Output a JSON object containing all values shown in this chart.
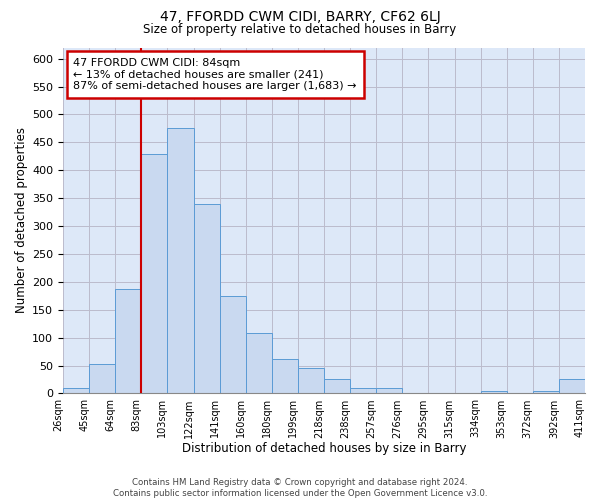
{
  "title": "47, FFORDD CWM CIDI, BARRY, CF62 6LJ",
  "subtitle": "Size of property relative to detached houses in Barry",
  "xlabel": "Distribution of detached houses by size in Barry",
  "ylabel": "Number of detached properties",
  "bar_values": [
    10,
    53,
    187,
    430,
    475,
    340,
    175,
    108,
    62,
    46,
    26,
    10,
    10,
    0,
    0,
    0,
    4,
    0,
    5,
    26
  ],
  "bar_labels": [
    "26sqm",
    "45sqm",
    "64sqm",
    "83sqm",
    "103sqm",
    "122sqm",
    "141sqm",
    "160sqm",
    "180sqm",
    "199sqm",
    "218sqm",
    "238sqm",
    "257sqm",
    "276sqm",
    "295sqm",
    "315sqm",
    "334sqm",
    "353sqm",
    "372sqm",
    "392sqm",
    "411sqm"
  ],
  "bar_color": "#c9d9f0",
  "bar_edge_color": "#5b9bd5",
  "plot_bg_color": "#dde8f8",
  "vline_x": 3,
  "vline_color": "#cc0000",
  "annotation_box_text": "47 FFORDD CWM CIDI: 84sqm\n← 13% of detached houses are smaller (241)\n87% of semi-detached houses are larger (1,683) →",
  "annotation_box_edgecolor": "#cc0000",
  "annotation_box_facecolor": "white",
  "ylim": [
    0,
    620
  ],
  "yticks": [
    0,
    50,
    100,
    150,
    200,
    250,
    300,
    350,
    400,
    450,
    500,
    550,
    600
  ],
  "footer": "Contains HM Land Registry data © Crown copyright and database right 2024.\nContains public sector information licensed under the Open Government Licence v3.0.",
  "background_color": "#ffffff",
  "grid_color": "#bbbbcc"
}
